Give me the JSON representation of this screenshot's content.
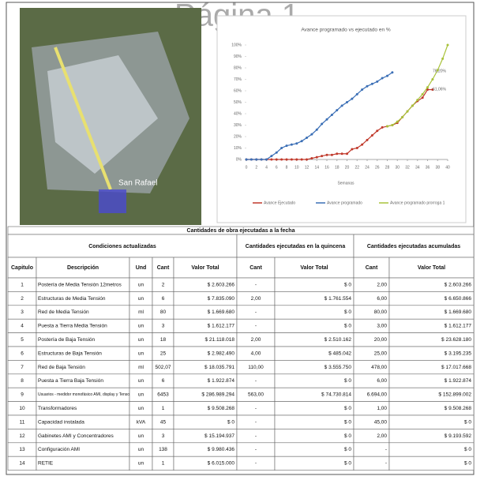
{
  "header": {
    "title": "Página 1"
  },
  "map": {
    "label": "San Rafael"
  },
  "chart_data": {
    "type": "line",
    "title": "Avance programado vs ejecutado en %",
    "x_label": "Semanas",
    "x": [
      0,
      1,
      2,
      3,
      4,
      5,
      6,
      7,
      8,
      9,
      10,
      11,
      12,
      13,
      14,
      15,
      16,
      17,
      18,
      19,
      20,
      21,
      22,
      23,
      24,
      25,
      26,
      27,
      28,
      29,
      30,
      31,
      32,
      33,
      34,
      35,
      36,
      37,
      38,
      39,
      40
    ],
    "xlim": [
      0,
      40
    ],
    "xticks": [
      0,
      2,
      4,
      6,
      8,
      10,
      12,
      14,
      16,
      18,
      20,
      22,
      24,
      26,
      28,
      30,
      32,
      34,
      36,
      38,
      40
    ],
    "ylim": [
      0,
      100
    ],
    "yticks": [
      {
        "value": 0,
        "label": "0%"
      },
      {
        "value": 10,
        "label": "10%"
      },
      {
        "value": 20,
        "label": "20%"
      },
      {
        "value": 30,
        "label": "30%"
      },
      {
        "value": 40,
        "label": "40%"
      },
      {
        "value": 50,
        "label": "50%"
      },
      {
        "value": 60,
        "label": "60%"
      },
      {
        "value": 70,
        "label": "70%"
      },
      {
        "value": 80,
        "label": "80%"
      },
      {
        "value": 90,
        "label": "90%"
      },
      {
        "value": 100,
        "label": "100%"
      }
    ],
    "grid": false,
    "series": [
      {
        "name": "Avance Ejecutado",
        "color": "#c0392b",
        "values": [
          0,
          0,
          0,
          0,
          0,
          0,
          0,
          0,
          0,
          0,
          0,
          0,
          0,
          1,
          2,
          3,
          4,
          4,
          5,
          5,
          5,
          9,
          10,
          13,
          17,
          21,
          25,
          28,
          29,
          30,
          32,
          37,
          42,
          47,
          51,
          54,
          61,
          61,
          null,
          null,
          null
        ]
      },
      {
        "name": "Avance programado",
        "color": "#3b6fb6",
        "values": [
          0,
          0,
          0,
          0,
          0,
          3,
          6,
          10,
          12,
          13,
          14,
          16,
          19,
          22,
          26,
          31,
          35,
          39,
          43,
          47,
          50,
          53,
          57,
          61,
          64,
          66,
          68,
          71,
          73,
          76,
          null,
          null,
          null,
          null,
          null,
          null,
          null,
          null,
          null,
          null,
          null
        ]
      },
      {
        "name": "Avance programado prorroga 1",
        "color": "#a8c23a",
        "values": [
          null,
          null,
          null,
          null,
          null,
          null,
          null,
          null,
          null,
          null,
          null,
          null,
          null,
          null,
          null,
          null,
          null,
          null,
          null,
          null,
          null,
          null,
          null,
          null,
          null,
          null,
          null,
          null,
          29,
          30,
          33,
          37,
          42,
          47,
          52,
          57,
          63,
          70,
          78,
          88,
          100
        ]
      }
    ],
    "annotations": [
      "76,20%",
      "61,06%"
    ]
  },
  "table": {
    "title": "Cantidades de obra ejecutadas a la fecha",
    "groups": [
      "Condiciones actualizadas",
      "Cantidades ejecutadas en la quincena",
      "Cantidades ejecutadas acumuladas"
    ],
    "columns": [
      "Capitulo",
      "Descripción",
      "Und",
      "Cant",
      "Valor Total",
      "Cant",
      "Valor Total",
      "Cant",
      "Valor Total"
    ],
    "rows": [
      [
        "1",
        "Postería de Media Tensión 12metros",
        "un",
        "2",
        "$ 2.603.266",
        "-",
        "$ 0",
        "2,00",
        "$ 2.603.266"
      ],
      [
        "2",
        "Estructuras de Media Tensión",
        "un",
        "6",
        "$ 7.835.090",
        "2,00",
        "$ 1.761.554",
        "6,00",
        "$ 6.650.866"
      ],
      [
        "3",
        "Red de Media Tensión",
        "ml",
        "80",
        "$ 1.669.680",
        "-",
        "$ 0",
        "80,00",
        "$ 1.669.680"
      ],
      [
        "4",
        "Puesta a Tierra Media Tensión",
        "un",
        "3",
        "$ 1.612.177",
        "-",
        "$ 0",
        "3,00",
        "$ 1.612.177"
      ],
      [
        "5",
        "Postería de Baja Tensión",
        "un",
        "18",
        "$ 21.118.018",
        "2,00",
        "$ 2.510.162",
        "20,00",
        "$ 23.628.180"
      ],
      [
        "6",
        "Estructuras de Baja Tensión",
        "un",
        "25",
        "$ 2.982.490",
        "4,00",
        "$ 485.042",
        "25,00",
        "$ 3.195.235"
      ],
      [
        "7",
        "Red de Baja Tensión",
        "ml",
        "502,07",
        "$ 18.035.791",
        "110,00",
        "$ 3.555.750",
        "478,00",
        "$ 17.017.668"
      ],
      [
        "8",
        "Puesta a Tierra Baja Tensión",
        "un",
        "6",
        "$ 1.922.874",
        "-",
        "$ 0",
        "6,00",
        "$ 1.922.874"
      ],
      [
        "9",
        "Usuarios - medidor monofásico AMI, display y Tensor de acometidas",
        "un",
        "6453",
        "$ 286.989.294",
        "563,00",
        "$ 74.730.814",
        "6.694,00",
        "$ 152.899.002"
      ],
      [
        "10",
        "Transformadores",
        "un",
        "1",
        "$ 9.508.268",
        "-",
        "$ 0",
        "1,00",
        "$ 9.508.268"
      ],
      [
        "11",
        "Capacidad instalada",
        "kVA",
        "45",
        "$ 0",
        "-",
        "$ 0",
        "45,00",
        "$ 0"
      ],
      [
        "12",
        "Gabinetes AMI y Concentradores",
        "un",
        "3",
        "$ 15.194.937",
        "-",
        "$ 0",
        "2,00",
        "$ 9.193.592"
      ],
      [
        "13",
        "Configuración AMI",
        "un",
        "138",
        "$ 9.980.436",
        "-",
        "$ 0",
        "-",
        "$ 0"
      ],
      [
        "14",
        "RETIE",
        "un",
        "1",
        "$ 6.015.000",
        "-",
        "$ 0",
        "-",
        "$ 0"
      ]
    ]
  }
}
